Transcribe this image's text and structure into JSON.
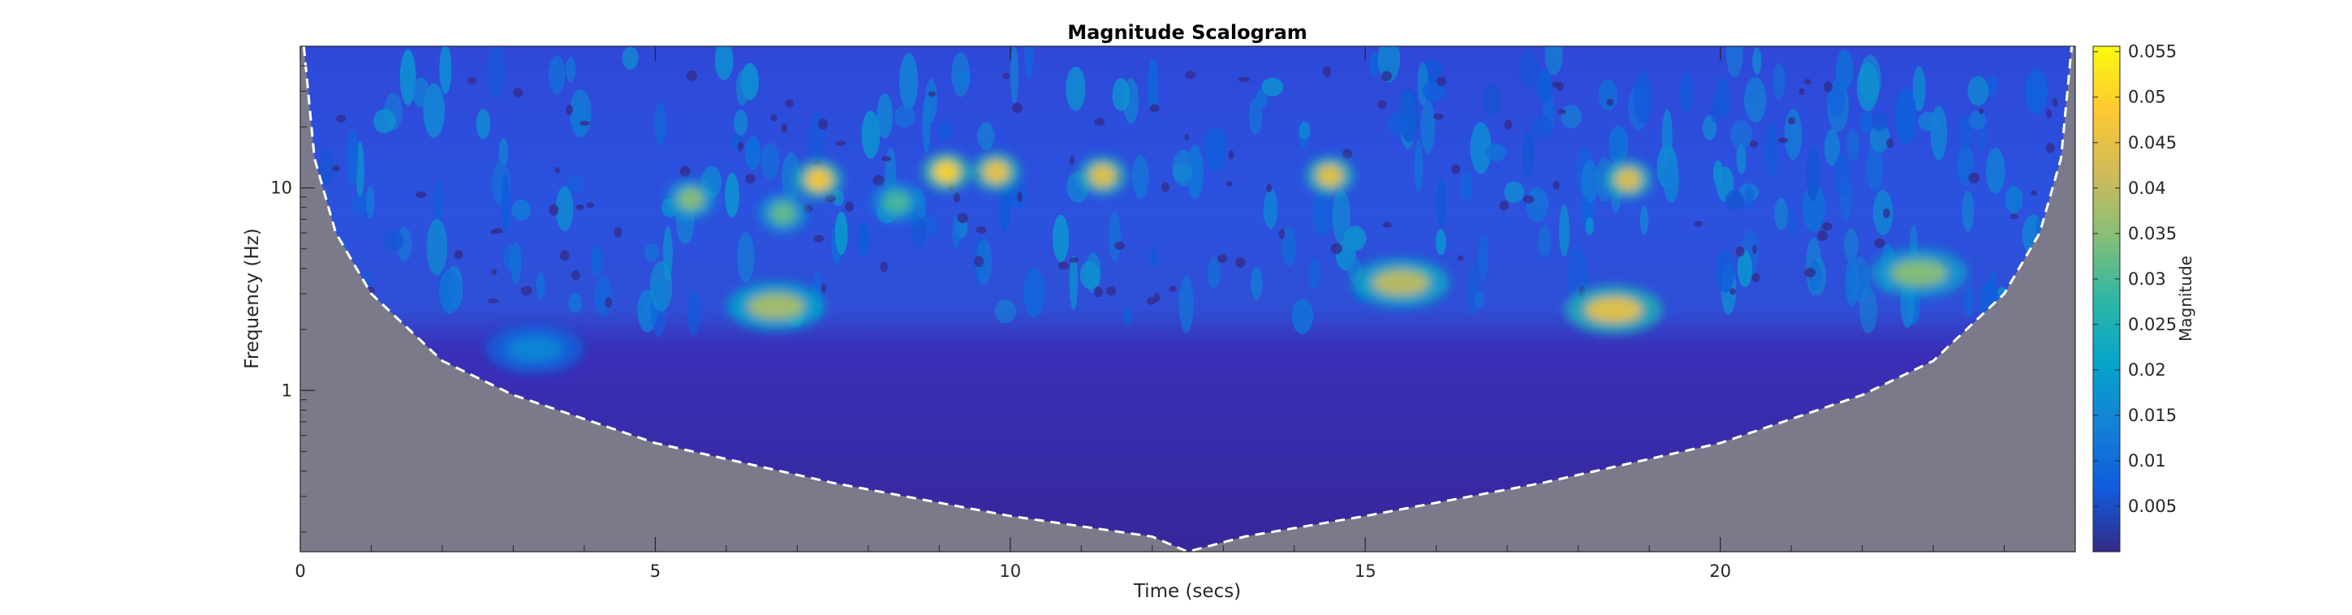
{
  "chart_data": {
    "type": "heatmap",
    "title": "Magnitude Scalogram",
    "xlabel": "Time (secs)",
    "ylabel": "Frequency (Hz)",
    "xlim": [
      0,
      25
    ],
    "ylim_hz": [
      0.16,
      50
    ],
    "y_scale": "log",
    "x_ticks": [
      0,
      5,
      10,
      15,
      20
    ],
    "y_ticks": [
      1,
      10
    ],
    "colorbar": {
      "label": "Magnitude",
      "range": [
        0,
        0.0556
      ],
      "ticks": [
        "0.005",
        "0.01",
        "0.015",
        "0.02",
        "0.025",
        "0.03",
        "0.035",
        "0.04",
        "0.045",
        "0.05",
        "0.055"
      ],
      "colormap": "parula"
    },
    "cone_of_influence": {
      "style": "dashed white line",
      "shaded_region_color": "#7a7a8a",
      "points": [
        {
          "t": 0.05,
          "f": 50
        },
        {
          "t": 0.2,
          "f": 14
        },
        {
          "t": 0.5,
          "f": 6
        },
        {
          "t": 1.0,
          "f": 3
        },
        {
          "t": 2.0,
          "f": 1.4
        },
        {
          "t": 3.0,
          "f": 0.95
        },
        {
          "t": 5.0,
          "f": 0.55
        },
        {
          "t": 7.5,
          "f": 0.35
        },
        {
          "t": 10.0,
          "f": 0.24
        },
        {
          "t": 12.0,
          "f": 0.19
        },
        {
          "t": 12.5,
          "f": 0.16
        },
        {
          "t": 13.3,
          "f": 0.19
        },
        {
          "t": 15.0,
          "f": 0.24
        },
        {
          "t": 17.5,
          "f": 0.35
        },
        {
          "t": 20.0,
          "f": 0.55
        },
        {
          "t": 22.0,
          "f": 0.95
        },
        {
          "t": 23.0,
          "f": 1.4
        },
        {
          "t": 24.0,
          "f": 3
        },
        {
          "t": 24.5,
          "f": 6
        },
        {
          "t": 24.8,
          "f": 14
        },
        {
          "t": 24.95,
          "f": 50
        }
      ]
    },
    "hotspots": [
      {
        "t": 7.3,
        "f": 11,
        "magnitude": 0.048
      },
      {
        "t": 9.1,
        "f": 12,
        "magnitude": 0.05
      },
      {
        "t": 9.8,
        "f": 12,
        "magnitude": 0.046
      },
      {
        "t": 11.3,
        "f": 11.5,
        "magnitude": 0.045
      },
      {
        "t": 14.5,
        "f": 11.5,
        "magnitude": 0.045
      },
      {
        "t": 18.7,
        "f": 11,
        "magnitude": 0.044
      },
      {
        "t": 18.5,
        "f": 2.5,
        "magnitude": 0.045
      },
      {
        "t": 15.5,
        "f": 3.4,
        "magnitude": 0.04
      },
      {
        "t": 6.7,
        "f": 2.6,
        "magnitude": 0.038
      },
      {
        "t": 22.8,
        "f": 3.8,
        "magnitude": 0.035
      },
      {
        "t": 5.5,
        "f": 8.8,
        "magnitude": 0.035
      },
      {
        "t": 6.8,
        "f": 7.5,
        "magnitude": 0.032
      },
      {
        "t": 8.4,
        "f": 8.5,
        "magnitude": 0.03
      },
      {
        "t": 3.3,
        "f": 1.6,
        "magnitude": 0.015
      }
    ],
    "dominant_band_hz": [
      2.3,
      14
    ]
  },
  "colors": {
    "parula": [
      "#352a87",
      "#0f5cdd",
      "#1481d6",
      "#06a4ca",
      "#2eb7a4",
      "#87bf77",
      "#d1bb59",
      "#fec832",
      "#f9fb0e"
    ],
    "coi_shade": "#7a7a8a",
    "axis": "#262626"
  }
}
